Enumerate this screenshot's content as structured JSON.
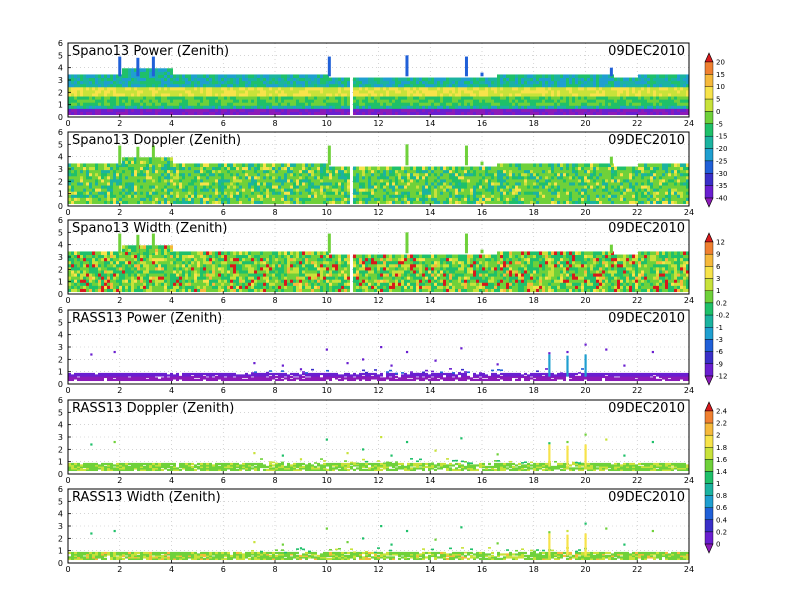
{
  "chart_data": [
    {
      "type": "heatmap",
      "title": "Spano13 Power (Zenith)",
      "date": "09DEC2010",
      "x_ticks": [
        "0",
        "2",
        "4",
        "6",
        "8",
        "10",
        "12",
        "14",
        "16",
        "18",
        "20",
        "22",
        "24"
      ],
      "y_ticks": [
        "0",
        "1",
        "2",
        "3",
        "4",
        "5",
        "6"
      ],
      "xlim": [
        0,
        24
      ],
      "ylim": [
        0,
        6
      ],
      "grid": true,
      "colorbar": "power",
      "top_height": [
        {
          "x": [
            0,
            2
          ],
          "y": 3.3
        },
        {
          "x": [
            2,
            4
          ],
          "y": 3.9
        },
        {
          "x": [
            4,
            10
          ],
          "y": 3.3
        },
        {
          "x": [
            10,
            16.5
          ],
          "y": 3.1
        },
        {
          "x": [
            16.5,
            21
          ],
          "y": 3.4
        },
        {
          "x": [
            21,
            22
          ],
          "y": 3.1
        },
        {
          "x": [
            22,
            24
          ],
          "y": 3.3
        }
      ],
      "spikes": [
        {
          "x": 2.0,
          "y": 4.9
        },
        {
          "x": 2.7,
          "y": 4.8
        },
        {
          "x": 3.3,
          "y": 4.9
        },
        {
          "x": 10.1,
          "y": 4.9
        },
        {
          "x": 13.1,
          "y": 5.0
        },
        {
          "x": 15.4,
          "y": 4.9
        },
        {
          "x": 16.0,
          "y": 3.6
        },
        {
          "x": 21.0,
          "y": 4.0
        }
      ],
      "gaps": [
        10.85,
        11.0
      ]
    },
    {
      "type": "heatmap",
      "title": "Spano13 Doppler (Zenith)",
      "date": "09DEC2010",
      "x_ticks": [
        "0",
        "2",
        "4",
        "6",
        "8",
        "10",
        "12",
        "14",
        "16",
        "18",
        "20",
        "22",
        "24"
      ],
      "y_ticks": [
        "0",
        "1",
        "2",
        "3",
        "4",
        "5",
        "6"
      ],
      "xlim": [
        0,
        24
      ],
      "ylim": [
        0,
        6
      ],
      "grid": true,
      "colorbar": "power",
      "top_height": [
        {
          "x": [
            0,
            2
          ],
          "y": 3.3
        },
        {
          "x": [
            2,
            4
          ],
          "y": 3.9
        },
        {
          "x": [
            4,
            10
          ],
          "y": 3.3
        },
        {
          "x": [
            10,
            16.5
          ],
          "y": 3.1
        },
        {
          "x": [
            16.5,
            21
          ],
          "y": 3.4
        },
        {
          "x": [
            21,
            22
          ],
          "y": 3.1
        },
        {
          "x": [
            22,
            24
          ],
          "y": 3.3
        }
      ],
      "spikes": [
        {
          "x": 2.0,
          "y": 4.9
        },
        {
          "x": 2.7,
          "y": 4.8
        },
        {
          "x": 3.3,
          "y": 4.9
        },
        {
          "x": 10.1,
          "y": 4.9
        },
        {
          "x": 13.1,
          "y": 5.0
        },
        {
          "x": 15.4,
          "y": 4.9
        },
        {
          "x": 16.0,
          "y": 3.6
        },
        {
          "x": 21.0,
          "y": 4.0
        }
      ],
      "gaps": [
        10.85,
        11.0
      ]
    },
    {
      "type": "heatmap",
      "title": "Spano13 Width (Zenith)",
      "date": "09DEC2010",
      "x_ticks": [
        "0",
        "2",
        "4",
        "6",
        "8",
        "10",
        "12",
        "14",
        "16",
        "18",
        "20",
        "22",
        "24"
      ],
      "y_ticks": [
        "0",
        "1",
        "2",
        "3",
        "4",
        "5",
        "6"
      ],
      "xlim": [
        0,
        24
      ],
      "ylim": [
        0,
        6
      ],
      "grid": true,
      "colorbar": "width",
      "top_height": [
        {
          "x": [
            0,
            2
          ],
          "y": 3.3
        },
        {
          "x": [
            2,
            4
          ],
          "y": 3.9
        },
        {
          "x": [
            4,
            10
          ],
          "y": 3.3
        },
        {
          "x": [
            10,
            16.5
          ],
          "y": 3.1
        },
        {
          "x": [
            16.5,
            21
          ],
          "y": 3.4
        },
        {
          "x": [
            21,
            22
          ],
          "y": 3.1
        },
        {
          "x": [
            22,
            24
          ],
          "y": 3.3
        }
      ],
      "spikes": [
        {
          "x": 2.0,
          "y": 4.9
        },
        {
          "x": 2.7,
          "y": 4.8
        },
        {
          "x": 3.3,
          "y": 4.9
        },
        {
          "x": 10.1,
          "y": 4.9
        },
        {
          "x": 13.1,
          "y": 5.0
        },
        {
          "x": 15.4,
          "y": 4.9
        },
        {
          "x": 16.0,
          "y": 3.6
        },
        {
          "x": 21.0,
          "y": 4.0
        }
      ],
      "gaps": [
        10.85,
        11.0
      ]
    },
    {
      "type": "scatter",
      "title": "RASS13 Power (Zenith)",
      "date": "09DEC2010",
      "x_ticks": [
        "0",
        "2",
        "4",
        "6",
        "8",
        "10",
        "12",
        "14",
        "16",
        "18",
        "20",
        "22",
        "24"
      ],
      "y_ticks": [
        "0",
        "1",
        "2",
        "3",
        "4",
        "5",
        "6"
      ],
      "xlim": [
        0,
        24
      ],
      "ylim": [
        0,
        6
      ],
      "grid": true,
      "colorbar": "width",
      "band": [
        0.3,
        0.8
      ],
      "dense_segments": [
        [
          7,
          20
        ]
      ],
      "points": [
        {
          "x": 0.9,
          "y": 2.4
        },
        {
          "x": 1.8,
          "y": 2.6
        },
        {
          "x": 7.2,
          "y": 1.7
        },
        {
          "x": 8.3,
          "y": 1.5
        },
        {
          "x": 9.0,
          "y": 1.2
        },
        {
          "x": 10.0,
          "y": 2.8
        },
        {
          "x": 10.8,
          "y": 1.7
        },
        {
          "x": 11.4,
          "y": 2.0
        },
        {
          "x": 12.1,
          "y": 3.0
        },
        {
          "x": 12.5,
          "y": 1.5
        },
        {
          "x": 13.1,
          "y": 2.6
        },
        {
          "x": 14.2,
          "y": 1.9
        },
        {
          "x": 15.2,
          "y": 2.9
        },
        {
          "x": 16.6,
          "y": 1.6
        },
        {
          "x": 18.6,
          "y": 2.5
        },
        {
          "x": 19.3,
          "y": 2.6
        },
        {
          "x": 20.0,
          "y": 3.2
        },
        {
          "x": 20.8,
          "y": 2.8
        },
        {
          "x": 21.5,
          "y": 1.5
        },
        {
          "x": 22.6,
          "y": 2.6
        }
      ],
      "spikes": [
        {
          "x": 18.6,
          "y": 2.4
        },
        {
          "x": 19.3,
          "y": 2.3
        },
        {
          "x": 20.0,
          "y": 2.4
        }
      ]
    },
    {
      "type": "scatter",
      "title": "RASS13 Doppler (Zenith)",
      "date": "09DEC2010",
      "x_ticks": [
        "0",
        "2",
        "4",
        "6",
        "8",
        "10",
        "12",
        "14",
        "16",
        "18",
        "20",
        "22",
        "24"
      ],
      "y_ticks": [
        "0",
        "1",
        "2",
        "3",
        "4",
        "5",
        "6"
      ],
      "xlim": [
        0,
        24
      ],
      "ylim": [
        0,
        6
      ],
      "grid": true,
      "colorbar": "rass",
      "band": [
        0.3,
        0.8
      ],
      "dense_segments": [
        [
          7,
          20
        ]
      ],
      "points": [
        {
          "x": 0.9,
          "y": 2.4
        },
        {
          "x": 1.8,
          "y": 2.6
        },
        {
          "x": 7.2,
          "y": 1.7
        },
        {
          "x": 8.3,
          "y": 1.5
        },
        {
          "x": 9.0,
          "y": 1.2
        },
        {
          "x": 10.0,
          "y": 2.8
        },
        {
          "x": 10.8,
          "y": 1.7
        },
        {
          "x": 11.4,
          "y": 2.0
        },
        {
          "x": 12.1,
          "y": 3.0
        },
        {
          "x": 12.5,
          "y": 1.5
        },
        {
          "x": 13.1,
          "y": 2.6
        },
        {
          "x": 14.2,
          "y": 1.9
        },
        {
          "x": 15.2,
          "y": 2.9
        },
        {
          "x": 16.6,
          "y": 1.6
        },
        {
          "x": 18.6,
          "y": 2.5
        },
        {
          "x": 19.3,
          "y": 2.6
        },
        {
          "x": 20.0,
          "y": 3.2
        },
        {
          "x": 20.8,
          "y": 2.8
        },
        {
          "x": 21.5,
          "y": 1.5
        },
        {
          "x": 22.6,
          "y": 2.6
        }
      ],
      "spikes": [
        {
          "x": 18.6,
          "y": 2.4
        },
        {
          "x": 19.3,
          "y": 2.3
        },
        {
          "x": 20.0,
          "y": 2.4
        }
      ]
    },
    {
      "type": "scatter",
      "title": "RASS13 Width (Zenith)",
      "date": "09DEC2010",
      "x_ticks": [
        "0",
        "2",
        "4",
        "6",
        "8",
        "10",
        "12",
        "14",
        "16",
        "18",
        "20",
        "22",
        "24"
      ],
      "y_ticks": [
        "0",
        "1",
        "2",
        "3",
        "4",
        "5",
        "6"
      ],
      "xlim": [
        0,
        24
      ],
      "ylim": [
        0,
        6
      ],
      "grid": true,
      "colorbar": "rass",
      "band": [
        0.3,
        0.8
      ],
      "dense_segments": [
        [
          7,
          20
        ]
      ],
      "points": [
        {
          "x": 0.9,
          "y": 2.4
        },
        {
          "x": 1.8,
          "y": 2.6
        },
        {
          "x": 7.2,
          "y": 1.7
        },
        {
          "x": 8.3,
          "y": 1.5
        },
        {
          "x": 9.0,
          "y": 1.2
        },
        {
          "x": 10.0,
          "y": 2.8
        },
        {
          "x": 10.8,
          "y": 1.7
        },
        {
          "x": 11.4,
          "y": 2.0
        },
        {
          "x": 12.1,
          "y": 3.0
        },
        {
          "x": 12.5,
          "y": 1.5
        },
        {
          "x": 13.1,
          "y": 2.6
        },
        {
          "x": 14.2,
          "y": 1.9
        },
        {
          "x": 15.2,
          "y": 2.9
        },
        {
          "x": 16.6,
          "y": 1.6
        },
        {
          "x": 18.6,
          "y": 2.5
        },
        {
          "x": 19.3,
          "y": 2.6
        },
        {
          "x": 20.0,
          "y": 3.2
        },
        {
          "x": 20.8,
          "y": 2.8
        },
        {
          "x": 21.5,
          "y": 1.5
        },
        {
          "x": 22.6,
          "y": 2.6
        }
      ],
      "spikes": [
        {
          "x": 18.6,
          "y": 2.4
        },
        {
          "x": 19.3,
          "y": 2.3
        },
        {
          "x": 20.0,
          "y": 2.4
        }
      ]
    }
  ],
  "colorbars": [
    {
      "id": "power",
      "labels": [
        "20",
        "15",
        "10",
        "5",
        "0",
        "-5",
        "-15",
        "-20",
        "-25",
        "-30",
        "-35",
        "-40"
      ],
      "colors": [
        "#d7191c",
        "#f08030",
        "#f6b93b",
        "#f7e34a",
        "#c8e23a",
        "#6fd13a",
        "#1fc06a",
        "#1bb3a0",
        "#1f9fd0",
        "#2060d8",
        "#3a2fc8",
        "#6a1fd0",
        "#8c1ab8"
      ]
    },
    {
      "id": "width",
      "labels": [
        "12",
        "9",
        "6",
        "3",
        "1",
        "0.2",
        "-0.2",
        "-1",
        "-3",
        "-6",
        "-9",
        "-12"
      ],
      "colors": [
        "#d7191c",
        "#f08030",
        "#f6b93b",
        "#f7e34a",
        "#c8e23a",
        "#6fd13a",
        "#1fc06a",
        "#1bb3a0",
        "#1f9fd0",
        "#2060d8",
        "#3a2fc8",
        "#6a1fd0",
        "#8c1ab8"
      ]
    },
    {
      "id": "rass",
      "labels": [
        "2.4",
        "2.2",
        "2",
        "1.8",
        "1.6",
        "1.4",
        "1",
        "0.8",
        "0.6",
        "0.4",
        "0.2",
        "0"
      ],
      "colors": [
        "#d7191c",
        "#f08030",
        "#f6b93b",
        "#f7e34a",
        "#c8e23a",
        "#6fd13a",
        "#1fc06a",
        "#1bb3a0",
        "#1f9fd0",
        "#2060d8",
        "#3a2fc8",
        "#6a1fd0",
        "#8c1ab8"
      ]
    }
  ]
}
